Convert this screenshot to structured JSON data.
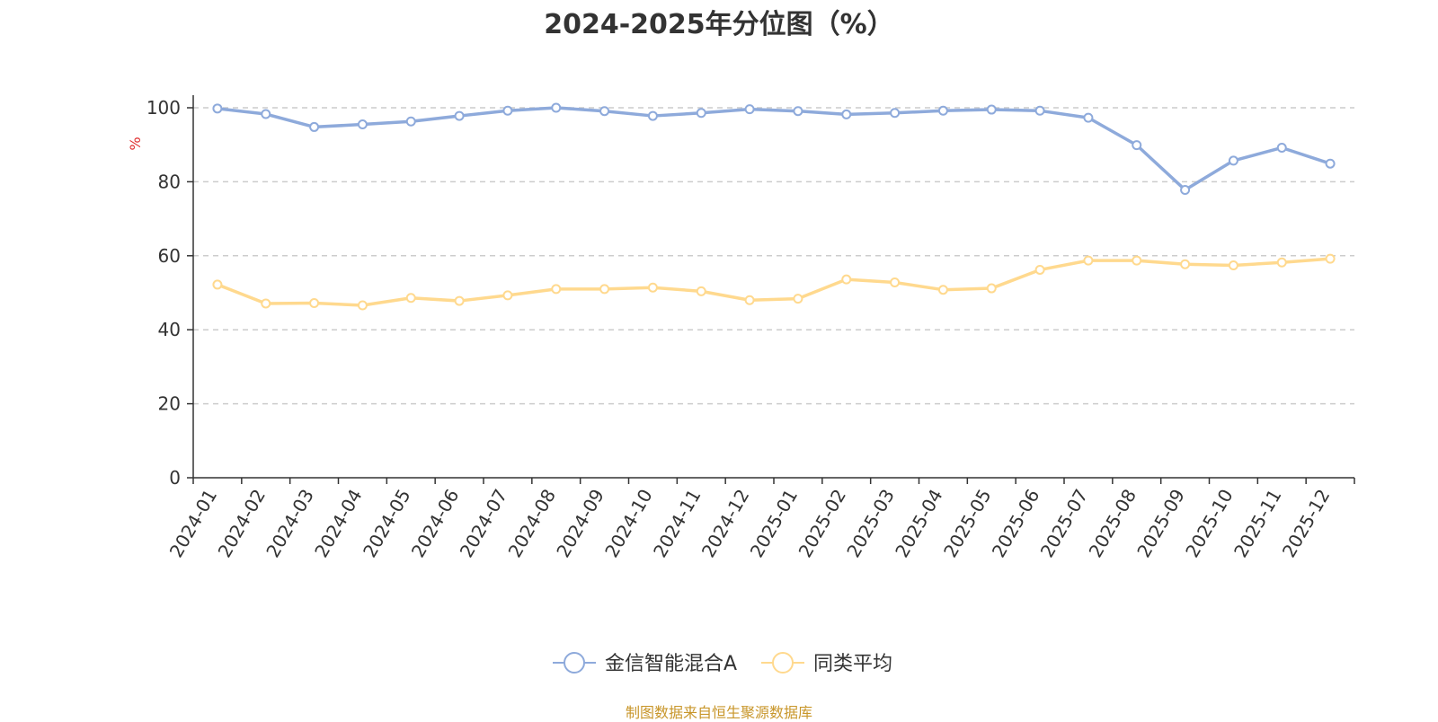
{
  "chart_data": {
    "type": "line",
    "title": "2024-2025年分位图（%）",
    "ylabel": "%",
    "ylim": [
      0,
      100
    ],
    "yticks": [
      0,
      20,
      40,
      60,
      80,
      100
    ],
    "grid": true,
    "legend_position": "bottom",
    "categories": [
      "2024-01",
      "2024-02",
      "2024-03",
      "2024-04",
      "2024-05",
      "2024-06",
      "2024-07",
      "2024-08",
      "2024-09",
      "2024-10",
      "2024-11",
      "2024-12",
      "2025-01",
      "2025-02",
      "2025-03",
      "2025-04",
      "2025-05",
      "2025-06",
      "2025-07",
      "2025-08",
      "2025-09",
      "2025-10",
      "2025-11",
      "2025-12"
    ],
    "series": [
      {
        "name": "金信智能混合A",
        "color": "#8eaadb",
        "values": [
          99.8,
          98.3,
          94.8,
          95.5,
          96.3,
          97.8,
          99.2,
          100,
          99.1,
          97.8,
          98.6,
          99.6,
          99.1,
          98.2,
          98.6,
          99.2,
          99.5,
          99.2,
          97.3,
          89.9,
          77.8,
          85.7,
          89.2,
          84.9
        ]
      },
      {
        "name": "同类平均",
        "color": "#ffd98e",
        "values": [
          52.2,
          47.1,
          47.2,
          46.6,
          48.6,
          47.8,
          49.3,
          51.0,
          51.0,
          51.4,
          50.4,
          48.0,
          48.4,
          53.6,
          52.8,
          50.8,
          51.2,
          56.2,
          58.7,
          58.7,
          57.7,
          57.4,
          58.2,
          59.2
        ]
      }
    ]
  },
  "footer": {
    "source": "制图数据来自恒生聚源数据库"
  }
}
